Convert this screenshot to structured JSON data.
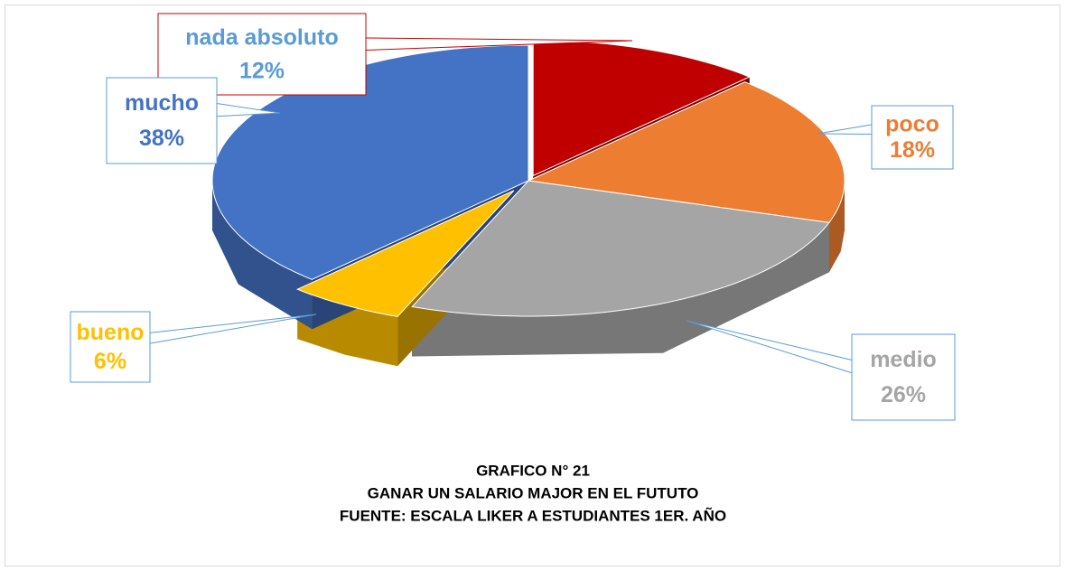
{
  "chart_data": {
    "type": "pie",
    "title": "GRAFICO N° 21",
    "subtitle": "GANAR UN SALARIO MAJOR EN EL FUTUTO",
    "source": "FUENTE: ESCALA LIKER A ESTUDIANTES 1ER. AÑO",
    "categories": [
      "nada absoluto",
      "poco",
      "medio",
      "bueno",
      "mucho"
    ],
    "values": [
      12,
      18,
      26,
      6,
      38
    ],
    "value_labels": [
      "12%",
      "18%",
      "26%",
      "6%",
      "38%"
    ],
    "colors": [
      "#c00000",
      "#ed7d31",
      "#a5a5a5",
      "#ffc000",
      "#4472c4"
    ],
    "label_colors": [
      "#5b9bd5",
      "#ed7d31",
      "#a5a5a5",
      "#ffc000",
      "#4472c4"
    ]
  }
}
